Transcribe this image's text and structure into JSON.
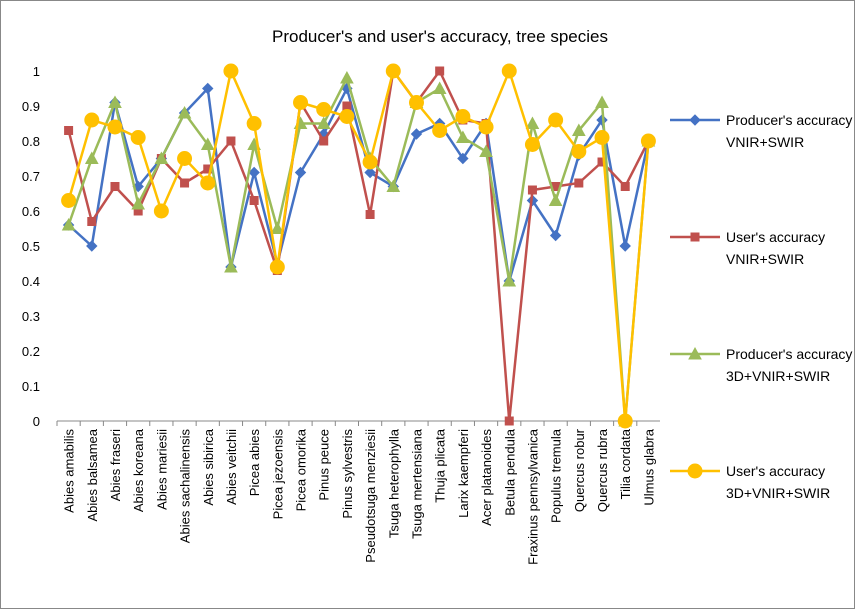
{
  "chart_data": {
    "type": "line",
    "title": "Producer's and user's accuracy, tree species",
    "categories": [
      "Abies amabilis",
      "Abies balsamea",
      "Abies fraseri",
      "Abies koreana",
      "Abies mariesii",
      "Abies sachalinensis",
      "Abies sibirica",
      "Abies veitchii",
      "Picea abies",
      "Picea jezoensis",
      "Picea omorika",
      "Pinus peuce",
      "Pinus sylvestris",
      "Pseudotsuga menziesii",
      "Tsuga heterophylla",
      "Tsuga mertensiana",
      "Thuja plicata",
      "Larix kaempferi",
      "Acer platanoides",
      "Betula pendula",
      "Fraxinus pennsylvanica",
      "Populus tremula",
      "Quercus robur",
      "Quercus rubra",
      "Tilia cordata",
      "Ulmus glabra"
    ],
    "series": [
      {
        "name": "Producer's accuracy VNIR+SWIR",
        "color": "#4472c4",
        "marker": "diamond",
        "values": [
          0.56,
          0.5,
          0.91,
          0.67,
          0.75,
          0.88,
          0.95,
          0.44,
          0.71,
          0.45,
          0.71,
          0.82,
          0.95,
          0.71,
          0.67,
          0.82,
          0.85,
          0.75,
          0.85,
          0.4,
          0.63,
          0.53,
          0.76,
          0.86,
          0.5,
          0.8
        ]
      },
      {
        "name": "User's accuracy VNIR+SWIR",
        "color": "#c0504d",
        "marker": "square",
        "values": [
          0.83,
          0.57,
          0.67,
          0.6,
          0.75,
          0.68,
          0.72,
          0.8,
          0.63,
          0.43,
          0.91,
          0.8,
          0.9,
          0.59,
          1.0,
          0.91,
          1.0,
          0.86,
          0.85,
          0,
          0.66,
          0.67,
          0.68,
          0.74,
          0.67,
          0.8
        ]
      },
      {
        "name": "Producer's accuracy 3D+VNIR+SWIR",
        "color": "#9bbb59",
        "marker": "triangle",
        "values": [
          0.56,
          0.75,
          0.91,
          0.62,
          0.75,
          0.88,
          0.79,
          0.44,
          0.79,
          0.55,
          0.85,
          0.85,
          0.98,
          0.75,
          0.67,
          0.91,
          0.95,
          0.81,
          0.77,
          0.4,
          0.85,
          0.63,
          0.83,
          0.91,
          0,
          0.8
        ]
      },
      {
        "name": "User's accuracy 3D+VNIR+SWIR",
        "color": "#ffc000",
        "marker": "circle",
        "values": [
          0.63,
          0.86,
          0.84,
          0.81,
          0.6,
          0.75,
          0.68,
          1.0,
          0.85,
          0.44,
          0.91,
          0.89,
          0.87,
          0.74,
          1.0,
          0.91,
          0.83,
          0.87,
          0.84,
          1.0,
          0.79,
          0.86,
          0.77,
          0.81,
          0,
          0.8
        ]
      }
    ],
    "ylim": [
      0,
      1
    ],
    "yticks": [
      0,
      0.1,
      0.2,
      0.3,
      0.4,
      0.5,
      0.6,
      0.7,
      0.8,
      0.9,
      1
    ],
    "grid": false,
    "legend": "right"
  }
}
